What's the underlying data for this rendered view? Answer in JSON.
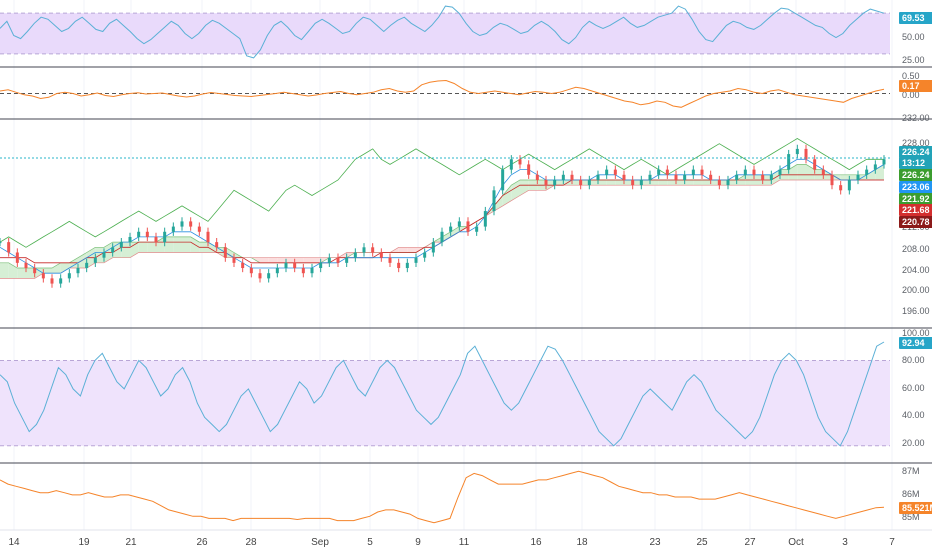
{
  "chart_data": [
    {
      "type": "line",
      "panel": "rsi-top",
      "y_ticks": [
        "75.00",
        "50.00",
        "25.00"
      ],
      "ylim": [
        20,
        80
      ],
      "band": [
        30,
        70
      ],
      "last_value": "69.53",
      "series": [
        {
          "values": [
            55,
            62,
            48,
            45,
            52,
            60,
            66,
            64,
            58,
            52,
            55,
            62,
            66,
            60,
            54,
            52,
            60,
            64,
            58,
            52,
            45,
            40,
            44,
            50,
            56,
            62,
            58,
            50,
            45,
            50,
            58,
            63,
            60,
            55,
            50,
            45,
            28,
            26,
            34,
            48,
            58,
            62,
            56,
            48,
            44,
            52,
            60,
            64,
            60,
            55,
            50,
            52,
            60,
            66,
            64,
            58,
            52,
            58,
            63,
            66,
            60,
            56,
            52,
            58,
            66,
            77,
            76,
            70,
            60,
            52,
            48,
            50,
            56,
            60,
            58,
            54,
            50,
            52,
            58,
            62,
            58,
            52,
            44,
            40,
            46,
            56,
            62,
            58,
            55,
            58,
            62,
            66,
            60,
            56,
            58,
            62,
            66,
            68,
            70,
            77,
            74,
            64,
            52,
            44,
            42,
            50,
            58,
            62,
            60,
            56,
            54,
            58,
            64,
            70,
            75,
            74,
            70,
            66,
            62,
            58,
            56,
            50,
            46,
            50,
            58,
            64,
            70,
            74,
            72,
            70
          ]
        }
      ],
      "colors": {
        "line": "#5bb0d6",
        "band": "#e9dafb",
        "tag": "#26a5c8"
      }
    },
    {
      "type": "line",
      "panel": "oscillator",
      "y_ticks": [
        "0.50",
        "0.00"
      ],
      "ylim": [
        -0.9,
        0.9
      ],
      "zero_line": 0,
      "last_value": "0.17",
      "series": [
        {
          "values": [
            0.1,
            0.15,
            0.05,
            -0.05,
            -0.1,
            -0.2,
            -0.15,
            0.0,
            0.05,
            0.0,
            -0.1,
            -0.05,
            0.02,
            -0.08,
            -0.12,
            -0.05,
            0.0,
            0.03,
            -0.02,
            0.0,
            0.02,
            -0.04,
            -0.1,
            -0.14,
            -0.1,
            -0.02,
            0.04,
            0.0,
            -0.04,
            -0.08,
            -0.1,
            -0.12,
            -0.08,
            -0.04,
            0.0,
            0.05,
            0.0,
            -0.05,
            -0.1,
            -0.06,
            0.0,
            0.04,
            0.08,
            0.0,
            -0.05,
            0.0,
            0.05,
            0.15,
            0.2,
            0.1,
            0.05,
            0.1,
            0.35,
            0.45,
            0.5,
            0.52,
            0.4,
            0.2,
            0.05,
            0.0,
            0.05,
            0.1,
            0.05,
            0.0,
            -0.05,
            0.02,
            0.08,
            0.05,
            0.0,
            0.05,
            0.15,
            0.25,
            0.2,
            0.1,
            0.0,
            -0.1,
            -0.2,
            -0.3,
            -0.35,
            -0.45,
            -0.4,
            -0.3,
            -0.35,
            -0.5,
            -0.55,
            -0.4,
            -0.25,
            -0.1,
            0.0,
            0.05,
            0.1,
            0.2,
            0.15,
            0.05,
            0.0,
            0.1,
            0.15,
            0.05,
            -0.05,
            -0.1,
            -0.15,
            -0.2,
            -0.25,
            -0.3,
            -0.35,
            -0.2,
            -0.1,
            0.0,
            0.1,
            0.17
          ]
        }
      ],
      "colors": {
        "line": "#f5842a",
        "zero": "#555555",
        "tag": "#f5842a"
      }
    },
    {
      "type": "candlestick",
      "panel": "price",
      "y_ticks": [
        "228.00",
        "224.00",
        "212.00",
        "208.00",
        "204.00",
        "200.00",
        "196.00",
        "232.00"
      ],
      "ylim": [
        194,
        233
      ],
      "price_tags": [
        {
          "label": "226.24",
          "color": "#22a3b8"
        },
        {
          "label": "13:12",
          "color": "#22a3b8"
        },
        {
          "label": "226.24",
          "color": "#3b9d2f"
        },
        {
          "label": "223.06",
          "color": "#2196f3"
        },
        {
          "label": "221.92",
          "color": "#3b9d2f"
        },
        {
          "label": "221.68",
          "color": "#d32f2f"
        },
        {
          "label": "220.78",
          "color": "#8b1a1a"
        }
      ],
      "close": [
        210,
        208,
        206,
        205,
        204,
        203,
        202,
        203,
        204,
        205,
        206,
        207,
        208,
        209,
        210,
        211,
        212,
        211,
        210,
        212,
        213,
        214,
        213,
        212,
        210,
        209,
        207,
        206,
        205,
        204,
        203,
        204,
        205,
        206,
        205,
        204,
        205,
        206,
        207,
        206,
        207,
        208,
        209,
        208,
        207,
        206,
        205,
        206,
        207,
        208,
        210,
        212,
        213,
        214,
        212,
        213,
        216,
        220,
        224,
        226,
        225,
        223,
        222,
        221,
        222,
        223,
        222,
        221,
        222,
        223,
        224,
        223,
        222,
        221,
        222,
        223,
        224,
        223,
        222,
        223,
        224,
        223,
        222,
        221,
        222,
        223,
        224,
        223,
        222,
        223,
        224,
        227,
        228,
        226,
        224,
        223,
        221,
        220,
        222,
        223,
        224,
        225,
        226
      ],
      "tenkan": [
        209,
        208,
        207,
        206,
        205,
        204,
        204,
        204,
        205,
        206,
        207,
        208,
        208,
        209,
        210,
        210,
        211,
        211,
        211,
        211,
        212,
        212,
        212,
        211,
        210,
        209,
        208,
        207,
        206,
        205,
        205,
        205,
        205,
        205,
        205,
        205,
        205,
        206,
        206,
        206,
        207,
        207,
        207,
        207,
        207,
        207,
        207,
        207,
        207,
        208,
        209,
        210,
        211,
        212,
        212,
        213,
        215,
        218,
        221,
        223,
        224,
        224,
        223,
        222,
        222,
        222,
        222,
        222,
        222,
        223,
        223,
        223,
        222,
        222,
        222,
        222,
        223,
        223,
        223,
        223,
        223,
        223,
        222,
        222,
        222,
        223,
        223,
        223,
        223,
        223,
        224,
        225,
        226,
        226,
        225,
        224,
        223,
        222,
        222,
        222,
        223,
        224,
        225
      ],
      "kijun": [
        207,
        207,
        207,
        207,
        206,
        206,
        206,
        206,
        206,
        206,
        207,
        207,
        208,
        208,
        209,
        209,
        210,
        210,
        210,
        210,
        210,
        210,
        210,
        209,
        209,
        208,
        208,
        207,
        207,
        206,
        206,
        206,
        206,
        206,
        206,
        206,
        206,
        206,
        206,
        207,
        207,
        207,
        207,
        207,
        208,
        208,
        208,
        208,
        208,
        209,
        209,
        210,
        211,
        212,
        213,
        214,
        215,
        217,
        219,
        220,
        221,
        221,
        221,
        221,
        221,
        221,
        222,
        222,
        222,
        222,
        222,
        222,
        222,
        222,
        222,
        222,
        222,
        222,
        222,
        222,
        222,
        222,
        222,
        222,
        222,
        222,
        222,
        222,
        222,
        222,
        223,
        223,
        223,
        223,
        223,
        223,
        223,
        222,
        222,
        222,
        222,
        222,
        222
      ],
      "span_a": [
        206,
        206,
        205,
        205,
        205,
        205,
        205,
        206,
        206,
        207,
        208,
        209,
        209,
        210,
        210,
        210,
        210,
        210,
        210,
        211,
        211,
        211,
        211,
        210,
        210,
        209,
        209,
        208,
        207,
        207,
        206,
        206,
        206,
        206,
        206,
        206,
        206,
        206,
        207,
        207,
        207,
        208,
        208,
        208,
        208,
        208,
        208,
        208,
        208,
        209,
        210,
        211,
        212,
        213,
        213,
        214,
        215,
        217,
        219,
        221,
        222,
        222,
        222,
        222,
        222,
        222,
        222,
        222,
        222,
        222,
        222,
        222,
        222,
        222,
        222,
        222,
        222,
        222,
        222,
        222,
        222,
        222,
        222,
        222,
        222,
        222,
        223,
        223,
        223,
        223,
        224,
        224,
        225,
        225,
        224,
        224,
        223,
        223,
        223,
        223,
        223,
        224,
        225
      ],
      "span_b": [
        203,
        203,
        203,
        203,
        203,
        204,
        204,
        204,
        205,
        205,
        205,
        206,
        206,
        207,
        207,
        207,
        208,
        208,
        208,
        208,
        208,
        208,
        208,
        208,
        208,
        208,
        207,
        207,
        207,
        207,
        207,
        207,
        207,
        207,
        207,
        207,
        207,
        207,
        207,
        207,
        208,
        208,
        208,
        208,
        208,
        208,
        209,
        209,
        209,
        209,
        210,
        210,
        211,
        212,
        213,
        214,
        215,
        216,
        217,
        218,
        219,
        220,
        220,
        220,
        221,
        221,
        221,
        221,
        221,
        221,
        221,
        221,
        221,
        221,
        221,
        221,
        221,
        221,
        221,
        221,
        221,
        221,
        221,
        221,
        221,
        221,
        221,
        221,
        221,
        221,
        222,
        222,
        222,
        222,
        222,
        222,
        222,
        222,
        222,
        222,
        222,
        222,
        222
      ],
      "chikou": [
        210,
        211,
        210,
        209,
        210,
        211,
        212,
        213,
        214,
        213,
        212,
        211,
        212,
        213,
        214,
        215,
        216,
        215,
        214,
        215,
        216,
        217,
        216,
        215,
        214,
        216,
        218,
        220,
        219,
        218,
        217,
        216,
        218,
        220,
        221,
        220,
        219,
        220,
        221,
        222,
        224,
        226,
        227,
        228,
        226,
        225,
        226,
        227,
        228,
        227,
        226,
        225,
        224,
        223,
        224,
        225,
        226,
        225,
        224,
        225,
        226,
        227,
        226,
        225,
        224,
        225,
        226,
        227,
        228,
        227,
        226,
        225,
        224,
        225,
        226,
        225,
        224,
        223,
        224,
        225,
        226,
        227,
        228,
        229,
        228,
        227,
        226,
        225,
        226,
        227,
        228,
        229,
        230,
        229,
        228,
        227,
        226,
        225,
        224,
        225,
        226,
        226,
        226
      ],
      "colors": {
        "up": "#26a69a",
        "down": "#ef5350",
        "cloud_up": "#d6efd5",
        "cloud_down": "#fbdede",
        "tenkan": "#2b8fe0",
        "kijun": "#c62828",
        "chikou": "#4caf50",
        "hline": "#29b6c9"
      }
    },
    {
      "type": "line",
      "panel": "stoch-rsi",
      "y_ticks": [
        "100.00",
        "80.00",
        "60.00",
        "40.00",
        "20.00"
      ],
      "ylim": [
        10,
        100
      ],
      "band": [
        20,
        80
      ],
      "last_value": "92.94",
      "series": [
        {
          "values": [
            70,
            65,
            50,
            40,
            30,
            35,
            45,
            60,
            75,
            70,
            60,
            55,
            70,
            80,
            85,
            75,
            65,
            60,
            70,
            80,
            75,
            65,
            55,
            60,
            70,
            75,
            65,
            50,
            40,
            35,
            30,
            35,
            45,
            55,
            60,
            50,
            40,
            30,
            35,
            45,
            55,
            65,
            60,
            50,
            55,
            65,
            75,
            80,
            70,
            60,
            55,
            65,
            75,
            80,
            75,
            65,
            55,
            45,
            40,
            35,
            40,
            50,
            60,
            70,
            85,
            90,
            80,
            70,
            60,
            50,
            45,
            50,
            60,
            70,
            80,
            90,
            88,
            80,
            70,
            60,
            50,
            40,
            30,
            25,
            20,
            25,
            35,
            45,
            55,
            60,
            55,
            50,
            45,
            55,
            65,
            70,
            65,
            55,
            45,
            40,
            35,
            30,
            25,
            30,
            40,
            55,
            70,
            80,
            85,
            80,
            70,
            55,
            40,
            30,
            25,
            20,
            30,
            45,
            60,
            75,
            90,
            92.94
          ]
        }
      ],
      "colors": {
        "line": "#5bb0d6",
        "band": "#efe3fc",
        "tag": "#26a5c8"
      }
    },
    {
      "type": "line",
      "panel": "volume-avg",
      "y_ticks": [
        "87M",
        "86M",
        "85M"
      ],
      "ylim": [
        84.6,
        87.4
      ],
      "last_value": "85.521M",
      "series": [
        {
          "values": [
            86.8,
            86.6,
            86.5,
            86.4,
            86.3,
            86.2,
            86.2,
            86.3,
            86.2,
            86.1,
            86.1,
            86.2,
            86.1,
            86.0,
            86.0,
            86.1,
            86.1,
            86.0,
            85.9,
            85.8,
            85.6,
            85.4,
            85.3,
            85.2,
            85.1,
            85.1,
            85.0,
            85.0,
            85.0,
            84.9,
            85.0,
            85.0,
            85.0,
            85.0,
            85.0,
            85.0,
            85.0,
            84.95,
            85.0,
            85.0,
            85.0,
            85.0,
            84.9,
            84.9,
            84.9,
            85.0,
            85.1,
            85.3,
            85.4,
            85.4,
            85.3,
            85.2,
            85.0,
            84.9,
            84.8,
            84.9,
            85.0,
            86.0,
            86.9,
            87.1,
            87.0,
            86.8,
            86.6,
            86.6,
            86.6,
            86.6,
            86.7,
            86.8,
            86.8,
            86.9,
            87.0,
            87.1,
            87.2,
            87.1,
            87.0,
            86.9,
            86.7,
            86.5,
            86.4,
            86.3,
            86.2,
            86.2,
            86.1,
            86.1,
            86.0,
            86.0,
            86.0,
            85.9,
            85.9,
            85.9,
            86.0,
            86.1,
            86.2,
            86.1,
            86.0,
            85.9,
            85.8,
            85.7,
            85.6,
            85.5,
            85.4,
            85.3,
            85.2,
            85.1,
            85.0,
            85.1,
            85.2,
            85.3,
            85.4,
            85.5,
            85.52
          ]
        }
      ],
      "colors": {
        "line": "#f5842a",
        "tag": "#f5842a"
      }
    }
  ],
  "x_axis": {
    "labels": [
      "14",
      "19",
      "21",
      "26",
      "28",
      "Sep",
      "5",
      "9",
      "11",
      "16",
      "18",
      "23",
      "25",
      "27",
      "Oct",
      "3",
      "7"
    ]
  },
  "colors": {
    "divider": "#434651",
    "grid": "#f0f3fa",
    "axis_text": "#5b5f66"
  }
}
